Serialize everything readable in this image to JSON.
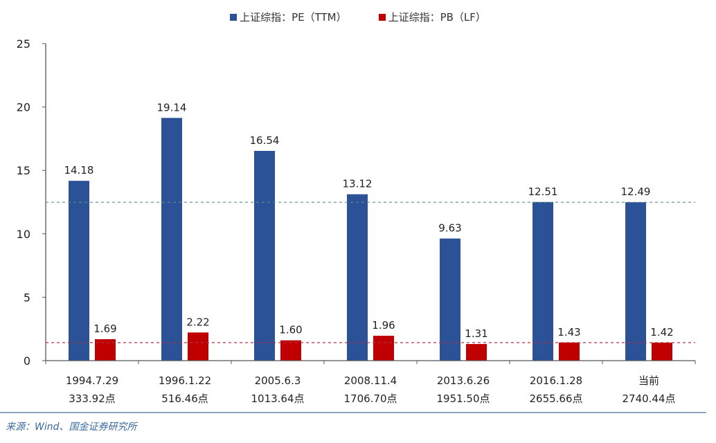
{
  "chart_data": {
    "type": "bar",
    "categories": [
      {
        "date": "1994.7.29",
        "index": "333.92点"
      },
      {
        "date": "1996.1.22",
        "index": "516.46点"
      },
      {
        "date": "2005.6.3",
        "index": "1013.64点"
      },
      {
        "date": "2008.11.4",
        "index": "1706.70点"
      },
      {
        "date": "2013.6.26",
        "index": "1951.50点"
      },
      {
        "date": "2016.1.28",
        "index": "2655.66点"
      },
      {
        "date": "当前",
        "index": "2740.44点"
      }
    ],
    "series": [
      {
        "name": "上证综指：PE（TTM）",
        "color": "#2b5296",
        "values": [
          14.18,
          19.14,
          16.54,
          13.12,
          9.63,
          12.51,
          12.49
        ]
      },
      {
        "name": "上证综指：PB（LF）",
        "color": "#c00000",
        "values": [
          1.69,
          2.22,
          1.6,
          1.96,
          1.31,
          1.43,
          1.42
        ]
      }
    ],
    "reference_lines": [
      {
        "value": 12.49,
        "color": "#5f8f8a",
        "style": "dashed"
      },
      {
        "value": 1.42,
        "color": "#b0304a",
        "style": "dashed"
      }
    ],
    "ylim": [
      0,
      25
    ],
    "yticks": [
      0,
      5,
      10,
      15,
      20,
      25
    ],
    "grid": false,
    "legend": "top-center"
  },
  "source": "来源：Wind、国金证券研究所"
}
